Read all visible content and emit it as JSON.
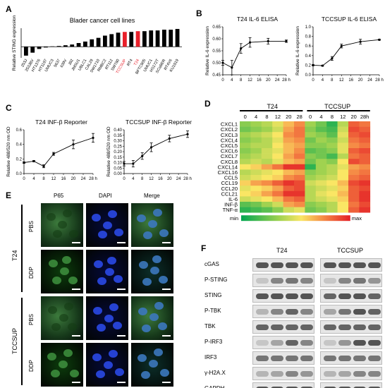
{
  "panels": {
    "A": {
      "letter": "A",
      "title": "Blader cancer cell lines",
      "ylabel": "Relative STING expression",
      "highlight_color": "#e8202a",
      "bar_color": "#000000"
    },
    "B": {
      "letter": "B",
      "left_title": "T24 IL-6 ELISA",
      "right_title": "TCCSUP IL-6 ELISA",
      "ylabel": "Relative IL-6 expression",
      "xunit": "h"
    },
    "C": {
      "letter": "C",
      "left_title": "T24 INF-β Reporter",
      "right_title": "TCCSUP INF-β Reporter",
      "ylabel": "Relative 488/520 nm OD",
      "xunit": "h"
    },
    "D": {
      "letter": "D",
      "group_left": "T24",
      "group_right": "TCCSUP",
      "timepoints": [
        "0",
        "4",
        "8",
        "12",
        "20",
        "28",
        "0",
        "4",
        "8",
        "12",
        "20",
        "28h"
      ],
      "genes": [
        "CXCL1",
        "CXCL2",
        "CXCL3",
        "CXCL4",
        "CXCL5",
        "CXCL6",
        "CXCL7",
        "CXCL8",
        "CXCL14",
        "CXCL16",
        "CCL5",
        "CCL19",
        "CCL20",
        "CCL21",
        "IL-6",
        "INF-β",
        "TNF-α"
      ],
      "legend_min": "min",
      "legend_max": "max"
    },
    "E": {
      "letter": "E",
      "columns": [
        "P65",
        "DAPI",
        "Merge"
      ],
      "cell_lines": [
        "T24",
        "TCCSUP"
      ],
      "treatments": [
        "PBS",
        "DDP",
        "PBS",
        "DDP"
      ]
    },
    "F": {
      "letter": "F",
      "group_left": "T24",
      "group_right": "TCCSUP",
      "proteins": [
        "cGAS",
        "P-STING",
        "STING",
        "P-TBK",
        "TBK",
        "P-IRF3",
        "IRF3",
        "γ-H2A.X",
        "GAPDH"
      ],
      "timepoints": [
        "0",
        "8",
        "16",
        "24 h",
        "0",
        "8",
        "16",
        "24 h"
      ]
    }
  },
  "chart_data": [
    {
      "type": "bar",
      "panel": "A",
      "title": "Blader cancer cell lines",
      "ylabel": "Relative STING expression",
      "categories": [
        "253J",
        "253JBV",
        "HT1376",
        "HT1197",
        "UMUC3",
        "5637",
        "639V",
        "J82",
        "JMSU1",
        "UBLC1",
        "CAL29",
        "SW1710",
        "RMBC2",
        "RT112",
        "SW780",
        "TCCSUP",
        "RT4",
        "T24",
        "BFTC905",
        "UMUC1",
        "HS172T",
        "SCaBER",
        "RT4V6",
        "KU1919"
      ],
      "values": [
        -1.2,
        -0.8,
        -0.3,
        -0.1,
        0.05,
        0.1,
        0.2,
        0.3,
        0.5,
        0.7,
        1.0,
        1.2,
        1.5,
        1.7,
        1.9,
        2.0,
        2.0,
        2.1,
        2.1,
        2.2,
        2.2,
        2.3,
        2.3,
        2.4
      ],
      "highlight": [
        "TCCSUP",
        "T24"
      ],
      "ylim": [
        -1.5,
        2.5
      ]
    },
    {
      "type": "line",
      "panel": "B-left",
      "title": "T24 IL-6 ELISA",
      "ylabel": "Relative IL-6 expression",
      "x": [
        0,
        4,
        8,
        12,
        20,
        28
      ],
      "y": [
        0.5,
        0.48,
        0.56,
        0.585,
        0.59,
        0.59
      ],
      "err": [
        0.01,
        0.03,
        0.02,
        0.02,
        0.012,
        0.005
      ],
      "yticks": [
        "0.45",
        "0.50",
        "0.55",
        "0.60",
        "0.65"
      ],
      "ylim": [
        0.45,
        0.65
      ],
      "xticks": [
        0,
        4,
        8,
        12,
        16,
        20,
        24,
        28
      ]
    },
    {
      "type": "line",
      "panel": "B-right",
      "title": "TCCSUP IL-6 ELISA",
      "ylabel": "Relative IL-6 expression",
      "x": [
        0,
        4,
        8,
        12,
        20,
        28
      ],
      "y": [
        0.2,
        0.19,
        0.34,
        0.6,
        0.69,
        0.73
      ],
      "err": [
        0.01,
        0.01,
        0.04,
        0.04,
        0.05,
        0.01
      ],
      "yticks": [
        "0.0",
        "0.2",
        "0.4",
        "0.6",
        "0.8",
        "1.0"
      ],
      "ylim": [
        0.0,
        1.0
      ],
      "xticks": [
        0,
        4,
        8,
        12,
        16,
        20,
        24,
        28
      ]
    },
    {
      "type": "line",
      "panel": "C-left",
      "title": "T24 INF-β Reporter",
      "ylabel": "Relative 488/520 nm OD",
      "x": [
        0,
        4,
        8,
        12,
        20,
        28
      ],
      "y": [
        0.15,
        0.17,
        0.1,
        0.27,
        0.4,
        0.49
      ],
      "err": [
        0.01,
        0.01,
        0.02,
        0.02,
        0.06,
        0.06
      ],
      "yticks": [
        "0.0",
        "0.2",
        "0.4",
        "0.6"
      ],
      "ylim": [
        0.0,
        0.6
      ],
      "xticks": [
        0,
        4,
        8,
        12,
        16,
        20,
        24,
        28
      ]
    },
    {
      "type": "line",
      "panel": "C-right",
      "title": "TCCSUP INF-β Reporter",
      "ylabel": "Relative 488/520 nm OD",
      "x": [
        0,
        4,
        8,
        12,
        20,
        28
      ],
      "y": [
        0.09,
        0.09,
        0.16,
        0.24,
        0.32,
        0.36
      ],
      "err": [
        0.02,
        0.03,
        0.03,
        0.04,
        0.03,
        0.03
      ],
      "yticks": [
        "0.00",
        "0.05",
        "0.10",
        "0.15",
        "0.20",
        "0.25",
        "0.30",
        "0.35",
        "0.40"
      ],
      "ylim": [
        0.0,
        0.4
      ],
      "xticks": [
        0,
        4,
        8,
        12,
        16,
        20,
        24,
        28
      ]
    },
    {
      "type": "heatmap",
      "panel": "D",
      "rows": [
        "CXCL1",
        "CXCL2",
        "CXCL3",
        "CXCL4",
        "CXCL5",
        "CXCL6",
        "CXCL7",
        "CXCL8",
        "CXCL14",
        "CXCL16",
        "CCL5",
        "CCL19",
        "CCL20",
        "CCL21",
        "IL-6",
        "INF-β",
        "TNF-α"
      ],
      "columns": [
        "T24 0",
        "T24 4",
        "T24 8",
        "T24 12",
        "T24 20",
        "T24 28",
        "TCCSUP 0",
        "TCCSUP 4",
        "TCCSUP 8",
        "TCCSUP 12",
        "TCCSUP 20",
        "TCCSUP 28"
      ],
      "values": [
        [
          0.3,
          0.35,
          0.4,
          0.5,
          0.65,
          0.75,
          0.35,
          0.25,
          0.1,
          0.4,
          0.85,
          0.8
        ],
        [
          0.25,
          0.3,
          0.35,
          0.45,
          0.7,
          0.8,
          0.3,
          0.2,
          0.15,
          0.45,
          0.9,
          0.85
        ],
        [
          0.35,
          0.4,
          0.45,
          0.55,
          0.75,
          0.8,
          0.35,
          0.3,
          0.2,
          0.5,
          0.85,
          0.9
        ],
        [
          0.3,
          0.35,
          0.4,
          0.5,
          0.7,
          0.75,
          0.25,
          0.35,
          0.3,
          0.45,
          0.8,
          0.85
        ],
        [
          0.35,
          0.4,
          0.4,
          0.55,
          0.65,
          0.7,
          0.3,
          0.3,
          0.35,
          0.5,
          0.75,
          0.8
        ],
        [
          0.3,
          0.35,
          0.45,
          0.5,
          0.65,
          0.75,
          0.2,
          0.25,
          0.3,
          0.5,
          0.85,
          0.9
        ],
        [
          0.35,
          0.4,
          0.45,
          0.55,
          0.7,
          0.8,
          0.3,
          0.25,
          0.15,
          0.4,
          0.8,
          0.85
        ],
        [
          0.4,
          0.45,
          0.4,
          0.5,
          0.65,
          0.7,
          0.25,
          0.35,
          0.3,
          0.55,
          0.9,
          0.85
        ],
        [
          0.55,
          0.6,
          0.7,
          0.8,
          0.95,
          0.95,
          0.1,
          0.35,
          0.4,
          0.5,
          0.7,
          0.75
        ],
        [
          0.4,
          0.45,
          0.5,
          0.55,
          0.65,
          0.7,
          0.3,
          0.35,
          0.4,
          0.55,
          0.75,
          0.8
        ],
        [
          0.45,
          0.5,
          0.55,
          0.6,
          0.75,
          0.8,
          0.35,
          0.4,
          0.45,
          0.55,
          0.8,
          0.85
        ],
        [
          0.6,
          0.7,
          0.75,
          0.85,
          0.95,
          0.9,
          0.45,
          0.5,
          0.55,
          0.65,
          0.9,
          0.95
        ],
        [
          0.5,
          0.55,
          0.6,
          0.7,
          0.85,
          0.9,
          0.4,
          0.45,
          0.5,
          0.6,
          0.85,
          0.9
        ],
        [
          0.55,
          0.6,
          0.7,
          0.8,
          0.95,
          0.95,
          0.4,
          0.5,
          0.55,
          0.65,
          0.85,
          0.95
        ],
        [
          0.45,
          0.5,
          0.55,
          0.65,
          0.8,
          0.85,
          0.4,
          0.45,
          0.5,
          0.6,
          0.85,
          0.95
        ],
        [
          0.2,
          0.25,
          0.35,
          0.45,
          0.7,
          0.75,
          0.3,
          0.35,
          0.4,
          0.55,
          0.8,
          0.9
        ],
        [
          0.1,
          0.15,
          0.2,
          0.3,
          0.45,
          0.5,
          0.25,
          0.3,
          0.4,
          0.55,
          0.85,
          0.95
        ]
      ]
    }
  ]
}
